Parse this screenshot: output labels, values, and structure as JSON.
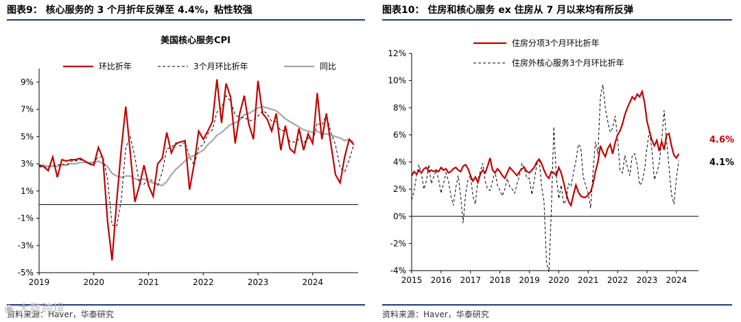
{
  "left_panel": {
    "title": "图表9：  核心服务的 3 个月折年反弹至 4.4%，粘性较强",
    "source": "资料来源：Haver，华泰研究"
  },
  "right_panel": {
    "title": "图表10：  住房和核心服务 ex 住房从 7 月以来均有所反弹",
    "source": "资料来源：Haver，华泰研究"
  },
  "watermark": "大数跨境",
  "chart_data": [
    {
      "type": "line",
      "title": "美国核心服务CPI",
      "xlabel": "",
      "ylabel": "",
      "xlim": [
        2019,
        2024.83
      ],
      "ylim": [
        -5,
        10
      ],
      "x_ticks": [
        "2019",
        "2020",
        "2021",
        "2022",
        "2023",
        "2024"
      ],
      "y_ticks": [
        "-5%",
        "-3%",
        "-1%",
        "1%",
        "3%",
        "5%",
        "7%",
        "9%"
      ],
      "y_tick_values": [
        -5,
        -3,
        -1,
        1,
        3,
        5,
        7,
        9
      ],
      "legend": "top",
      "series": [
        {
          "name": "环比折年",
          "color": "#c00000",
          "style": "solid",
          "values": [
            2.9,
            2.8,
            2.5,
            3.5,
            2.0,
            3.3,
            3.2,
            3.3,
            3.3,
            3.4,
            3.2,
            3.0,
            2.9,
            4.2,
            3.4,
            -1.2,
            -4.1,
            0.2,
            4.0,
            7.2,
            3.8,
            0.2,
            1.4,
            2.9,
            1.4,
            0.6,
            3.0,
            3.4,
            5.3,
            3.8,
            4.5,
            4.6,
            4.7,
            1.1,
            3.0,
            5.4,
            4.8,
            5.4,
            6.1,
            9.2,
            6.0,
            8.9,
            7.9,
            4.5,
            6.7,
            8.0,
            5.9,
            4.8,
            9.1,
            6.7,
            6.3,
            5.4,
            6.7,
            4.0,
            5.8,
            4.1,
            3.8,
            5.6,
            4.0,
            5.2,
            4.5,
            8.2,
            4.8,
            6.7,
            4.4,
            2.2,
            1.6,
            3.5,
            4.8,
            4.4
          ],
          "x_start": 2019.0,
          "x_step": 0.08333
        },
        {
          "name": "3个月环比折年",
          "color": "#000000",
          "style": "dashed",
          "values": [
            2.8,
            2.7,
            2.8,
            2.9,
            2.9,
            3.0,
            2.9,
            3.2,
            3.2,
            3.3,
            3.2,
            3.0,
            3.1,
            3.5,
            3.5,
            1.9,
            -1.5,
            -1.6,
            0.3,
            4.2,
            5.0,
            3.5,
            1.5,
            1.5,
            1.9,
            1.7,
            1.4,
            2.4,
            4.1,
            4.2,
            4.5,
            4.3,
            4.6,
            3.5,
            2.9,
            4.2,
            4.4,
            5.2,
            5.5,
            6.8,
            7.1,
            8.0,
            7.6,
            6.6,
            6.4,
            6.4,
            6.2,
            6.2,
            6.5,
            6.9,
            6.7,
            6.1,
            6.1,
            5.4,
            5.5,
            4.6,
            4.6,
            4.8,
            4.5,
            4.9,
            4.6,
            6.0,
            5.8,
            6.6,
            5.3,
            4.4,
            2.7,
            2.4,
            3.3,
            4.4
          ],
          "x_start": 2019.0,
          "x_step": 0.08333
        },
        {
          "name": "同比",
          "color": "#a6a6a6",
          "style": "solid",
          "values": [
            2.9,
            2.9,
            2.8,
            2.8,
            2.8,
            2.9,
            2.9,
            3.0,
            3.0,
            3.1,
            3.1,
            3.1,
            3.1,
            3.2,
            3.0,
            2.8,
            2.3,
            2.1,
            2.0,
            2.1,
            2.1,
            1.9,
            1.8,
            1.9,
            1.7,
            1.6,
            1.5,
            1.4,
            1.7,
            2.2,
            2.6,
            2.9,
            3.2,
            3.5,
            3.6,
            3.8,
            4.0,
            4.4,
            4.7,
            5.1,
            5.3,
            5.6,
            5.9,
            6.0,
            6.2,
            6.6,
            6.7,
            6.9,
            7.1,
            7.2,
            7.1,
            7.0,
            6.9,
            6.6,
            6.3,
            6.1,
            5.9,
            5.7,
            5.5,
            5.4,
            5.3,
            5.4,
            5.2,
            5.2,
            5.1,
            5.0,
            4.9,
            4.7,
            4.8,
            4.6
          ],
          "x_start": 2019.0,
          "x_step": 0.08333
        }
      ]
    },
    {
      "type": "line",
      "title": "",
      "xlabel": "",
      "ylabel": "",
      "xlim": [
        2015,
        2024.75
      ],
      "ylim": [
        -4,
        12
      ],
      "x_ticks": [
        "2015",
        "2016",
        "2017",
        "2018",
        "2019",
        "2020",
        "2021",
        "2022",
        "2023",
        "2024"
      ],
      "y_ticks": [
        "-4%",
        "-2%",
        "0%",
        "2%",
        "4%",
        "6%",
        "8%",
        "10%",
        "12%"
      ],
      "y_tick_values": [
        -4,
        -2,
        0,
        2,
        4,
        6,
        8,
        10,
        12
      ],
      "legend": "top",
      "end_labels": [
        "4.6%",
        "4.1%"
      ],
      "series": [
        {
          "name": "住房分项3个月环比折年",
          "color": "#c00000",
          "style": "solid",
          "values": [
            3.0,
            3.3,
            3.1,
            3.4,
            3.2,
            3.5,
            3.6,
            3.3,
            3.4,
            3.3,
            3.4,
            3.3,
            3.6,
            3.4,
            3.5,
            3.2,
            3.3,
            3.5,
            3.6,
            3.4,
            3.3,
            3.7,
            3.8,
            3.5,
            3.0,
            2.6,
            2.9,
            2.5,
            3.1,
            3.4,
            3.2,
            3.7,
            4.3,
            3.4,
            3.2,
            3.5,
            3.3,
            3.0,
            2.8,
            3.2,
            3.6,
            3.4,
            3.2,
            3.0,
            3.3,
            3.5,
            3.6,
            3.3,
            3.2,
            3.4,
            3.6,
            4.0,
            4.2,
            3.9,
            3.4,
            3.0,
            2.8,
            3.3,
            3.2,
            3.0,
            3.6,
            3.2,
            2.5,
            1.7,
            1.1,
            0.8,
            1.6,
            2.3,
            1.8,
            1.5,
            1.4,
            1.4,
            1.6,
            1.8,
            2.4,
            3.3,
            4.0,
            5.2,
            4.7,
            4.4,
            5.0,
            5.3,
            4.6,
            5.4,
            6.0,
            6.3,
            6.8,
            7.5,
            8.0,
            8.4,
            8.8,
            8.6,
            9.0,
            8.8,
            9.2,
            8.4,
            7.0,
            6.3,
            5.6,
            5.2,
            5.6,
            4.8,
            5.5,
            4.9,
            6.0,
            6.1,
            5.2,
            4.5,
            4.3,
            4.6
          ],
          "x_start": 2015.0,
          "x_step": 0.08333
        },
        {
          "name": "住房外核心服务3个月环比折年",
          "color": "#000000",
          "style": "dashed",
          "values": [
            1.2,
            1.9,
            3.0,
            3.8,
            3.1,
            2.0,
            2.6,
            3.8,
            2.4,
            2.9,
            3.4,
            2.7,
            1.7,
            2.4,
            3.2,
            2.6,
            1.5,
            0.8,
            2.1,
            3.0,
            1.4,
            -0.5,
            1.6,
            2.7,
            3.0,
            1.5,
            0.9,
            2.7,
            3.3,
            3.9,
            2.6,
            2.0,
            1.9,
            2.6,
            3.3,
            2.3,
            1.9,
            1.5,
            2.0,
            2.8,
            2.2,
            2.0,
            1.7,
            2.4,
            3.0,
            3.9,
            3.5,
            2.8,
            2.8,
            1.6,
            2.6,
            3.8,
            4.3,
            2.2,
            1.1,
            -3.4,
            -4.1,
            0.5,
            6.6,
            3.0,
            1.3,
            2.3,
            0.9,
            1.2,
            2.4,
            2.2,
            3.2,
            4.1,
            5.3,
            5.1,
            2.9,
            2.3,
            1.7,
            0.6,
            3.3,
            5.5,
            4.6,
            8.8,
            9.7,
            8.0,
            7.0,
            6.2,
            6.5,
            7.4,
            5.8,
            3.4,
            3.2,
            4.5,
            3.6,
            3.0,
            4.5,
            4.6,
            3.8,
            2.3,
            2.5,
            3.4,
            5.1,
            6.3,
            4.9,
            2.7,
            3.2,
            3.9,
            5.6,
            7.8,
            5.6,
            3.6,
            1.6,
            0.9,
            2.8,
            4.1
          ],
          "x_start": 2015.0,
          "x_step": 0.08333
        }
      ]
    }
  ]
}
